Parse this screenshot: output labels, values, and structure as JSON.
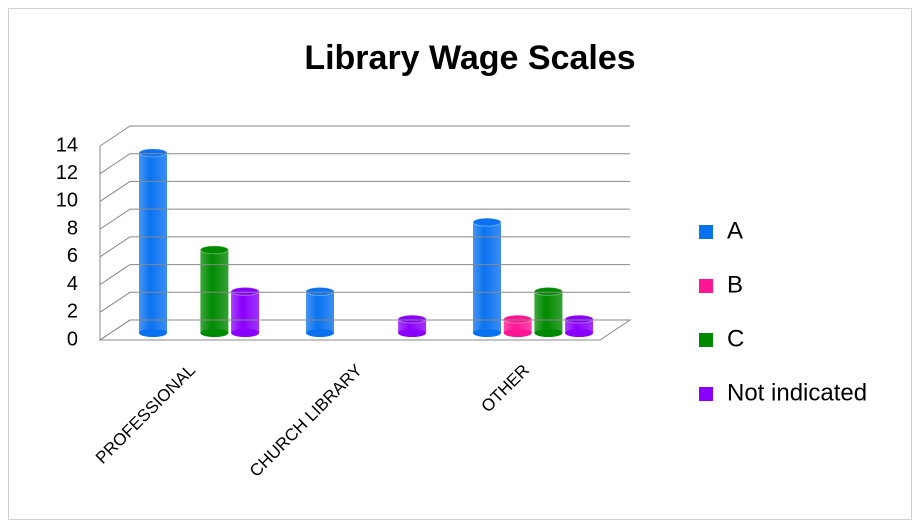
{
  "chart_data": {
    "type": "bar3d",
    "title": "Library Wage Scales",
    "categories": [
      "PROFESSIONAL",
      "CHURCH LIBRARY",
      "OTHER"
    ],
    "series": [
      {
        "name": "A",
        "color": "#0a72f0",
        "values": [
          13,
          3,
          8
        ]
      },
      {
        "name": "B",
        "color": "#ff1493",
        "values": [
          0,
          0,
          1
        ]
      },
      {
        "name": "C",
        "color": "#008a00",
        "values": [
          6,
          0,
          3
        ]
      },
      {
        "name": "Not indicated",
        "color": "#8a00ff",
        "values": [
          3,
          1,
          1
        ]
      }
    ],
    "ylim": [
      0,
      14
    ],
    "yticks": [
      0,
      2,
      4,
      6,
      8,
      10,
      12,
      14
    ],
    "grid": true,
    "legend": "right"
  }
}
